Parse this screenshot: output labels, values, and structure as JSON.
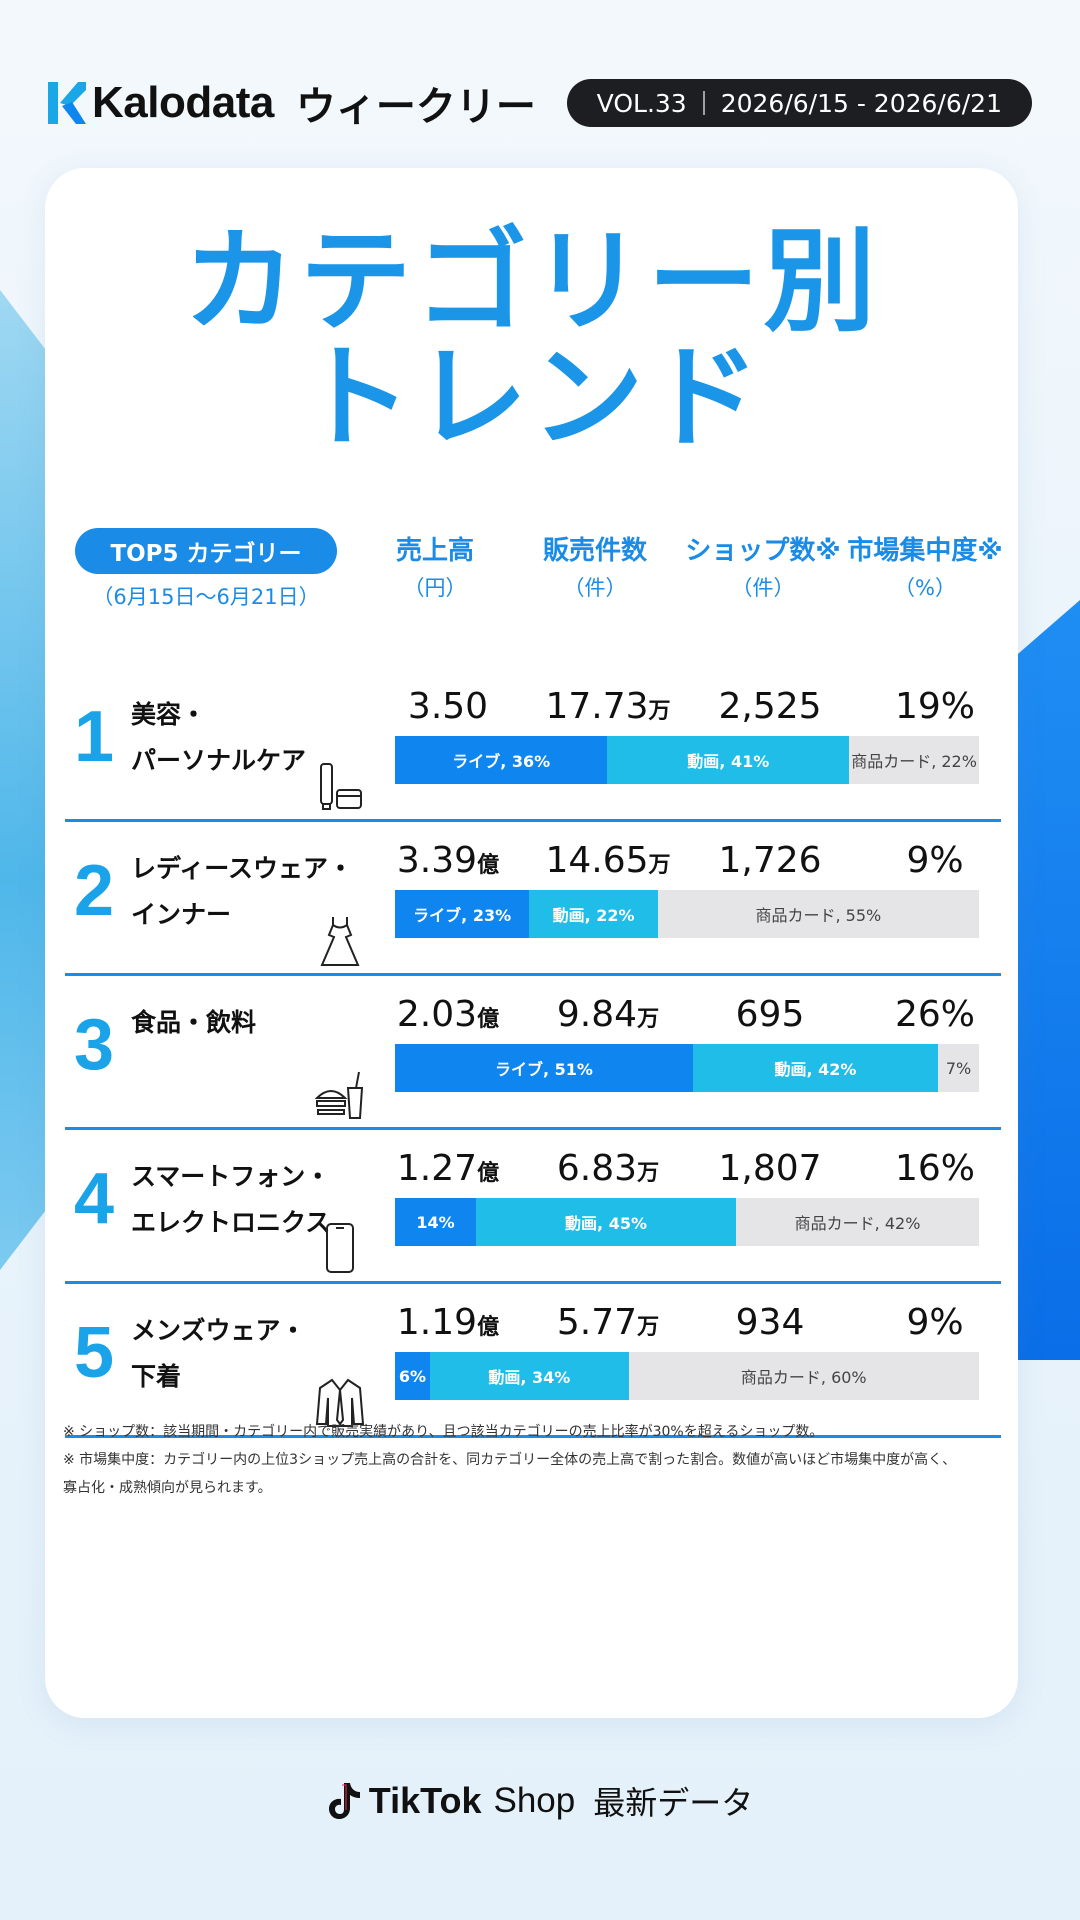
{
  "header": {
    "logo_text": "Kalodata",
    "weekly": "ウィークリー",
    "vol": "VOL.33",
    "date_range": "2026/6/15 - 2026/6/21"
  },
  "title": {
    "line1": "カテゴリー別",
    "line2": "トレンド"
  },
  "table": {
    "top5_label": "TOP5 カテゴリー",
    "top5_date": "（6月15日〜6月21日）",
    "columns": [
      {
        "label": "売上高",
        "unit": "（円）"
      },
      {
        "label": "販売件数",
        "unit": "（件）"
      },
      {
        "label": "ショップ数※",
        "unit": "（件）"
      },
      {
        "label": "市場集中度※",
        "unit": "（%）"
      }
    ],
    "rows": [
      {
        "rank": "1",
        "line1": "美容・",
        "line2": "パーソナルケア",
        "icon": "cosmetics-icon",
        "sales": "3.50",
        "sales_unit": "",
        "units": "17.73",
        "units_unit": "万",
        "shops": "2,525",
        "conc": "19%",
        "live_pct": 36,
        "video_pct": 41,
        "card_pct": 22,
        "live_label": "ライブ, 36%",
        "video_label": "動画, 41%",
        "card_label": "商品カード, 22%"
      },
      {
        "rank": "2",
        "line1": "レディースウェア・",
        "line2": "インナー",
        "icon": "dress-icon",
        "sales": "3.39",
        "sales_unit": "億",
        "units": "14.65",
        "units_unit": "万",
        "shops": "1,726",
        "conc": "9%",
        "live_pct": 23,
        "video_pct": 22,
        "card_pct": 55,
        "live_label": "ライブ, 23%",
        "video_label": "動画, 22%",
        "card_label": "商品カード, 55%"
      },
      {
        "rank": "3",
        "line1": "食品・飲料",
        "line2": "",
        "icon": "burger-drink-icon",
        "sales": "2.03",
        "sales_unit": "億",
        "units": "9.84",
        "units_unit": "万",
        "shops": "695",
        "conc": "26%",
        "live_pct": 51,
        "video_pct": 42,
        "card_pct": 7,
        "live_label": "ライブ, 51%",
        "video_label": "動画, 42%",
        "card_label": "7%"
      },
      {
        "rank": "4",
        "line1": "スマートフォン・",
        "line2": "エレクトロニクス",
        "icon": "smartphone-icon",
        "sales": "1.27",
        "sales_unit": "億",
        "units": "6.83",
        "units_unit": "万",
        "shops": "1,807",
        "conc": "16%",
        "live_pct": 14,
        "video_pct": 45,
        "card_pct": 42,
        "live_label": "14%",
        "video_label": "動画, 45%",
        "card_label": "商品カード, 42%"
      },
      {
        "rank": "5",
        "line1": "メンズウェア・",
        "line2": "下着",
        "icon": "shirt-icon",
        "sales": "1.19",
        "sales_unit": "億",
        "units": "5.77",
        "units_unit": "万",
        "shops": "934",
        "conc": "9%",
        "live_pct": 6,
        "video_pct": 34,
        "card_pct": 60,
        "live_label": "6%",
        "video_label": "動画, 34%",
        "card_label": "商品カード, 60%"
      }
    ]
  },
  "notes": {
    "note1": "※ ショップ数：該当期間・カテゴリー内で販売実績があり、且つ該当カテゴリーの売上比率が30%を超えるショップ数。",
    "note2": "※ 市場集中度：カテゴリー内の上位3ショップ売上高の合計を、同カテゴリー全体の売上高で割った割合。数値が高いほど市場集中度が高く、",
    "note3": "寡占化・成熟傾向が見られます。"
  },
  "footer": {
    "brand": "TikTok",
    "shop": "Shop",
    "latest": "最新データ"
  },
  "colors": {
    "accent": "#1a8be6",
    "live": "#0f86ef",
    "video": "#20bde9",
    "card": "#e5e5e7"
  }
}
